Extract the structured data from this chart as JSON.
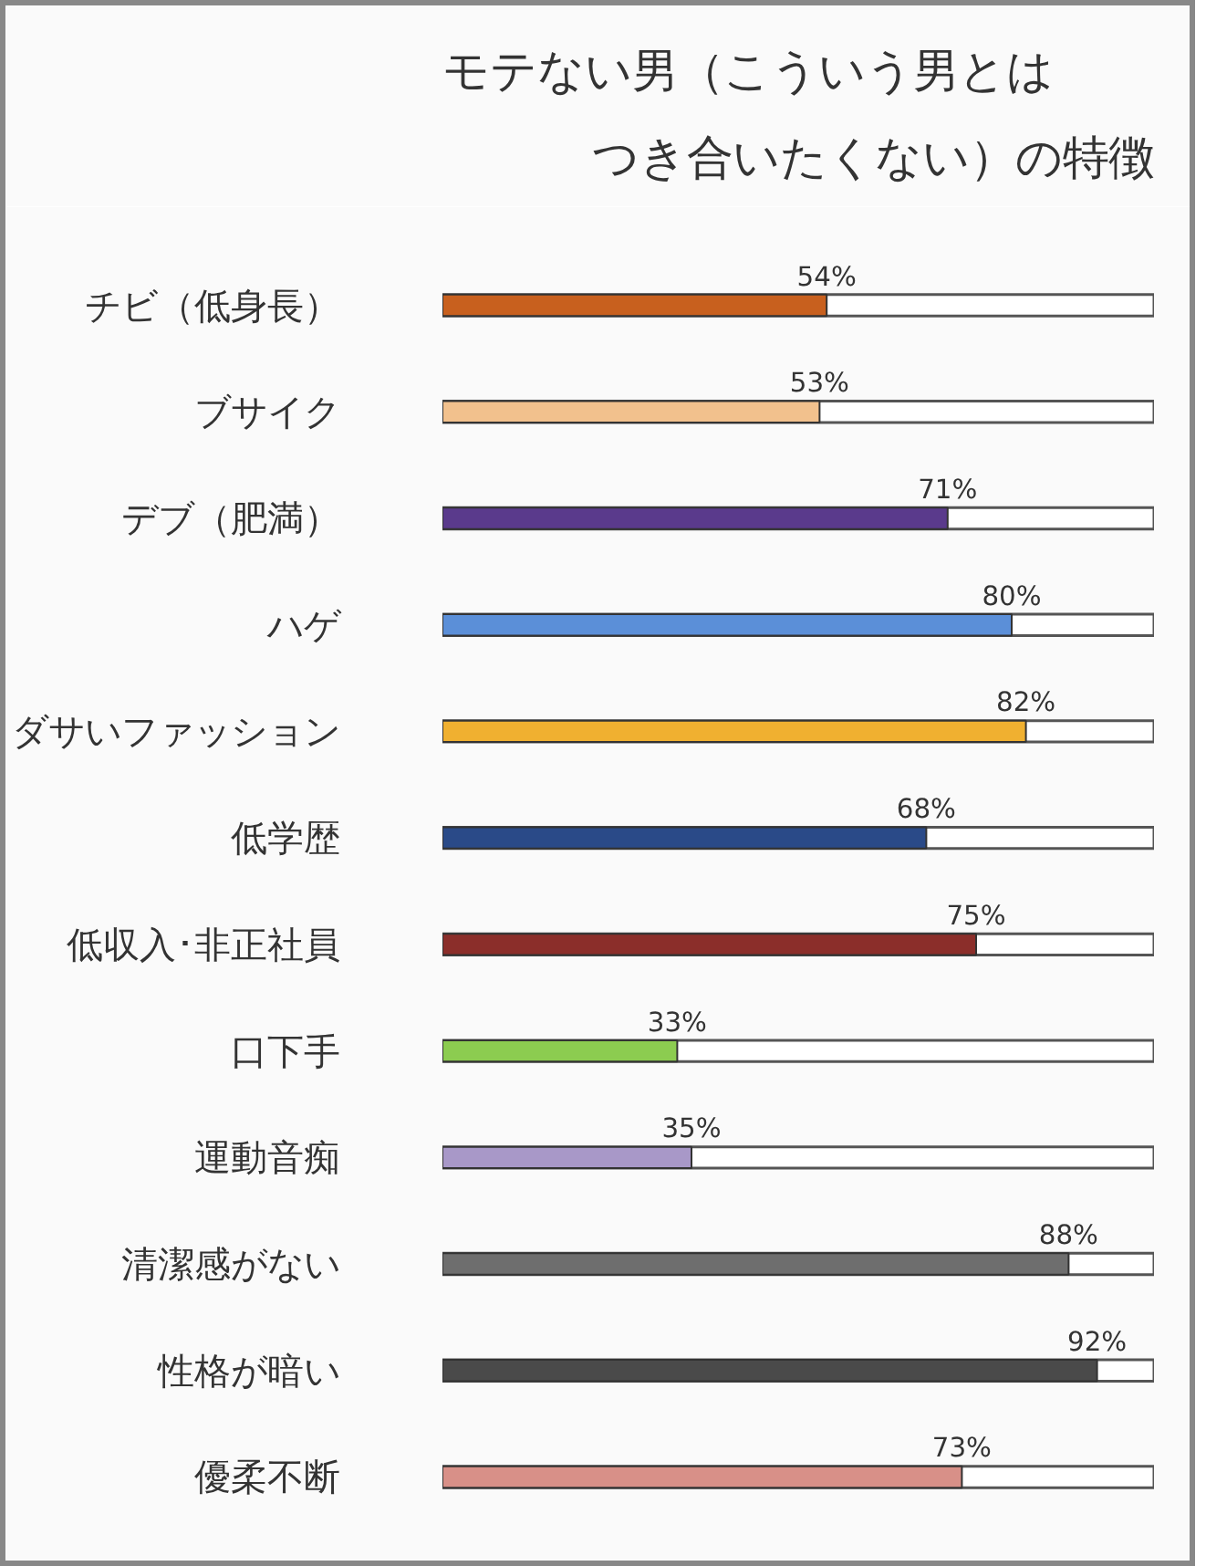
{
  "chart_data": {
    "type": "bar",
    "orientation": "horizontal",
    "title": "モテない男（こういう男とはつき合いたくない）の特徴",
    "categories": [
      "チビ（低身長）",
      "ブサイク",
      "デブ（肥満）",
      "ハゲ",
      "ダサいファッション",
      "低学歴",
      "低収入･非正社員",
      "口下手",
      "運動音痴",
      "清潔感がない",
      "性格が暗い",
      "優柔不断"
    ],
    "values": [
      54,
      53,
      71,
      80,
      82,
      68,
      75,
      33,
      35,
      88,
      92,
      73
    ],
    "value_labels": [
      "54%",
      "53%",
      "71%",
      "80%",
      "82%",
      "68%",
      "75%",
      "33%",
      "35%",
      "88%",
      "92%",
      "73%"
    ],
    "colors": [
      "#c8601e",
      "#f2c18d",
      "#5a3a8c",
      "#5b8fd8",
      "#f0b030",
      "#2a4a88",
      "#8b2e2a",
      "#8ccc50",
      "#a898c8",
      "#6e6e6e",
      "#4a4a4a",
      "#d89088"
    ],
    "xlim": [
      0,
      100
    ],
    "tick_labels": "y"
  }
}
